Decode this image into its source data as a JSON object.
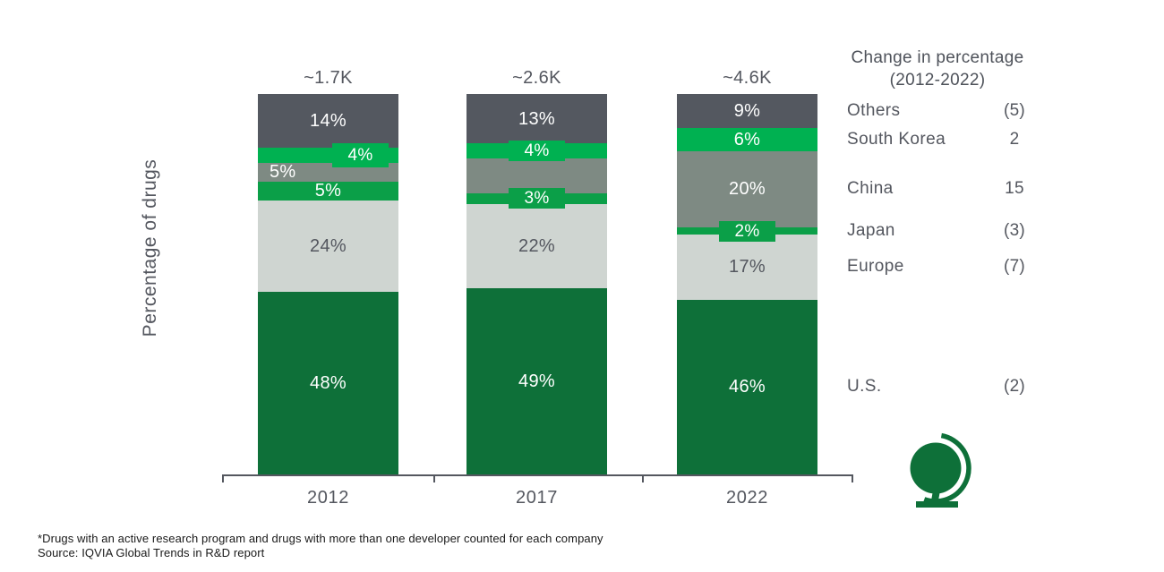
{
  "chart_data": {
    "type": "bar",
    "stacked": true,
    "title": "",
    "ylabel": "Percentage of drugs",
    "xlabel": "",
    "ylim": [
      0,
      100
    ],
    "grid": false,
    "categories": [
      "2012",
      "2017",
      "2022"
    ],
    "bar_totals": [
      "~1.7K",
      "~2.6K",
      "~4.6K"
    ],
    "stack_order_top_to_bottom": [
      "Others",
      "South Korea",
      "China",
      "Japan",
      "Europe",
      "U.S."
    ],
    "series": [
      {
        "name": "Others",
        "values": [
          14,
          13,
          9
        ],
        "labels": [
          "14%",
          "13%",
          "9%"
        ],
        "placements": [
          "inside",
          "inside",
          "inside"
        ],
        "color": "#545860"
      },
      {
        "name": "South Korea",
        "values": [
          4,
          4,
          6
        ],
        "labels": [
          "4%",
          "4%",
          "6%"
        ],
        "placements": [
          "tab-right",
          "tab",
          "inside"
        ],
        "color": "#00b151"
      },
      {
        "name": "China",
        "values": [
          5,
          9,
          20
        ],
        "labels": [
          "5%",
          "",
          "20%"
        ],
        "placements": [
          "inside-left",
          "none",
          "inside"
        ],
        "color": "#7e8a83"
      },
      {
        "name": "Japan",
        "values": [
          5,
          3,
          2
        ],
        "labels": [
          "5%",
          "3%",
          "2%"
        ],
        "placements": [
          "inside",
          "tab",
          "tab"
        ],
        "color": "#0b9f48"
      },
      {
        "name": "Europe",
        "values": [
          24,
          22,
          17
        ],
        "labels": [
          "24%",
          "22%",
          "17%"
        ],
        "placements": [
          "inside",
          "inside",
          "inside"
        ],
        "color": "#cfd5d1",
        "label_color": "#54575f"
      },
      {
        "name": "U.S.",
        "values": [
          48,
          49,
          46
        ],
        "labels": [
          "48%",
          "49%",
          "46%"
        ],
        "placements": [
          "inside",
          "inside",
          "inside"
        ],
        "color": "#0e7039"
      }
    ]
  },
  "legend": {
    "title_line1": "Change in percentage",
    "title_line2": "(2012-2022)",
    "items": [
      {
        "region": "Others",
        "change": "(5)"
      },
      {
        "region": "South Korea",
        "change": "2"
      },
      {
        "region": "China",
        "change": "15"
      },
      {
        "region": "Japan",
        "change": "(3)"
      },
      {
        "region": "Europe",
        "change": "(7)"
      },
      {
        "region": "U.S.",
        "change": "(2)"
      }
    ]
  },
  "footnote": "*Drugs with an active research program and drugs with more than one developer counted for each company",
  "source": "Source: IQVIA Global Trends in R&D report",
  "icons": {
    "globe": "globe-icon",
    "globe_color": "#0e7039"
  },
  "colors": {
    "axis": "#54575f",
    "text_gray": "#54575f",
    "footnote_text": "#191919"
  }
}
